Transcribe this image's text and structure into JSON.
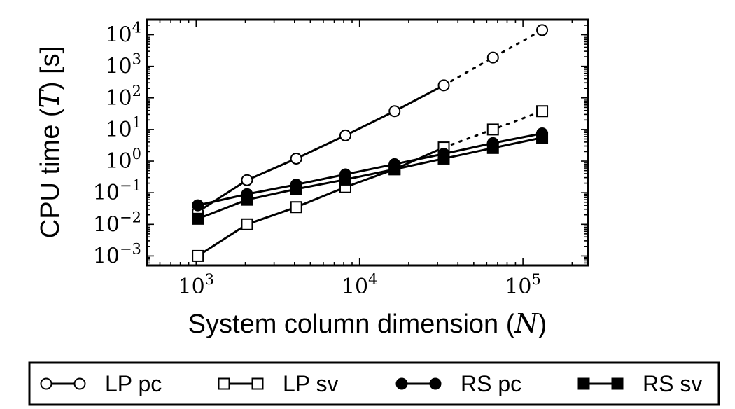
{
  "chart_data": {
    "type": "line",
    "xscale": "log",
    "yscale": "log",
    "xlabel": "System column dimension",
    "xlabel_var": "N",
    "ylabel": "CPU time",
    "ylabel_var": "T",
    "ylabel_unit": "[s]",
    "xlim": [
      500,
      250000
    ],
    "ylim": [
      0.0005,
      30000
    ],
    "x_ticks": [
      {
        "value": 1000,
        "base": "10",
        "exp": "3"
      },
      {
        "value": 10000,
        "base": "10",
        "exp": "4"
      },
      {
        "value": 100000,
        "base": "10",
        "exp": "5"
      }
    ],
    "y_ticks": [
      {
        "value": 0.001,
        "base": "10",
        "exp": "−3"
      },
      {
        "value": 0.01,
        "base": "10",
        "exp": "−2"
      },
      {
        "value": 0.1,
        "base": "10",
        "exp": "−1"
      },
      {
        "value": 1,
        "base": "10",
        "exp": "0"
      },
      {
        "value": 10,
        "base": "10",
        "exp": "1"
      },
      {
        "value": 100,
        "base": "10",
        "exp": "2"
      },
      {
        "value": 1000,
        "base": "10",
        "exp": "3"
      },
      {
        "value": 10000,
        "base": "10",
        "exp": "4"
      }
    ],
    "series": [
      {
        "name": "LP pc",
        "marker": "circle",
        "filled": false,
        "x": [
          1024,
          2048,
          4096,
          8192,
          16384,
          32768,
          65536,
          131072
        ],
        "y": [
          0.025,
          0.25,
          1.2,
          6.5,
          38,
          250,
          1900,
          14000
        ],
        "solid_until_index": 5
      },
      {
        "name": "LP sv",
        "marker": "square",
        "filled": false,
        "x": [
          1024,
          2048,
          4096,
          8192,
          16384,
          32768,
          65536,
          131072
        ],
        "y": [
          0.001,
          0.01,
          0.035,
          0.15,
          0.55,
          2.7,
          10,
          38
        ],
        "solid_until_index": 5
      },
      {
        "name": "RS pc",
        "marker": "circle",
        "filled": true,
        "x": [
          1024,
          2048,
          4096,
          8192,
          16384,
          32768,
          65536,
          131072
        ],
        "y": [
          0.04,
          0.09,
          0.18,
          0.38,
          0.8,
          1.7,
          3.7,
          7.5
        ],
        "solid_until_index": 7
      },
      {
        "name": "RS sv",
        "marker": "square",
        "filled": true,
        "x": [
          1024,
          2048,
          4096,
          8192,
          16384,
          32768,
          65536,
          131072
        ],
        "y": [
          0.015,
          0.06,
          0.13,
          0.26,
          0.55,
          1.2,
          2.6,
          5.5
        ],
        "solid_until_index": 7
      }
    ],
    "legend_position": "bottom"
  }
}
